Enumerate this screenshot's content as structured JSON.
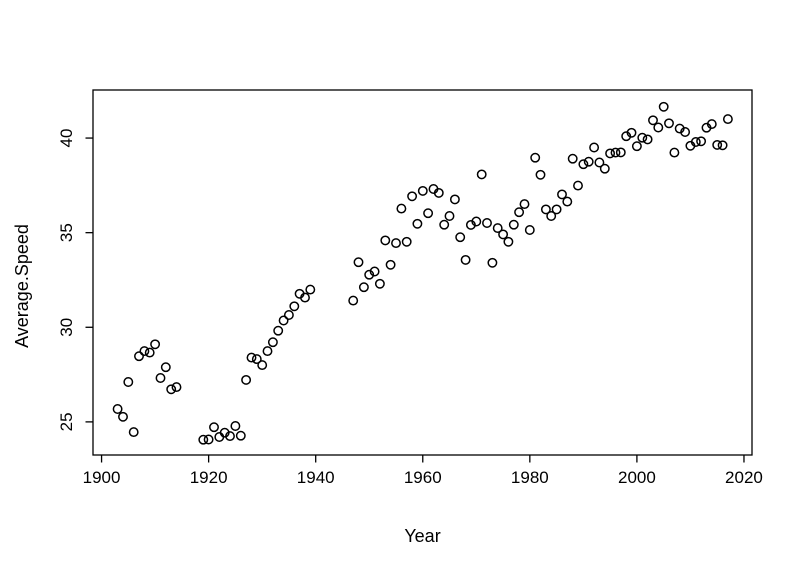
{
  "figure": {
    "background": "#ffffff",
    "foreground": "#000000"
  },
  "chart_data": {
    "type": "scatter",
    "title": "",
    "xlabel": "Year",
    "ylabel": "Average.Speed",
    "marker": "open-circle",
    "marker_color": "#000000",
    "grid": false,
    "legend": null,
    "xlim": [
      1898.4,
      2021.5
    ],
    "ylim": [
      23.25,
      42.54
    ],
    "x_ticks": [
      1900,
      1920,
      1940,
      1960,
      1980,
      2000,
      2020
    ],
    "y_ticks": [
      25,
      30,
      35,
      40
    ],
    "series": [
      {
        "name": "points",
        "x": [
          1903,
          1904,
          1905,
          1906,
          1907,
          1908,
          1909,
          1910,
          1911,
          1912,
          1913,
          1914,
          1919,
          1920,
          1921,
          1922,
          1923,
          1924,
          1925,
          1926,
          1927,
          1928,
          1929,
          1930,
          1931,
          1932,
          1933,
          1934,
          1935,
          1936,
          1937,
          1938,
          1939,
          1947,
          1948,
          1949,
          1950,
          1951,
          1952,
          1953,
          1954,
          1955,
          1956,
          1957,
          1958,
          1959,
          1960,
          1961,
          1962,
          1963,
          1964,
          1965,
          1966,
          1967,
          1968,
          1969,
          1970,
          1971,
          1972,
          1973,
          1974,
          1975,
          1976,
          1977,
          1978,
          1979,
          1980,
          1981,
          1982,
          1983,
          1984,
          1985,
          1986,
          1987,
          1988,
          1989,
          1990,
          1991,
          1992,
          1993,
          1994,
          1995,
          1996,
          1997,
          1998,
          1999,
          2000,
          2001,
          2002,
          2003,
          2004,
          2005,
          2006,
          2007,
          2008,
          2009,
          2010,
          2011,
          2012,
          2013,
          2014,
          2015,
          2016,
          2017
        ],
        "y": [
          25.68,
          25.27,
          27.11,
          24.46,
          28.47,
          28.74,
          28.66,
          29.1,
          27.32,
          27.89,
          26.72,
          26.84,
          24.06,
          24.07,
          24.72,
          24.2,
          24.43,
          24.25,
          24.78,
          24.27,
          27.22,
          28.4,
          28.32,
          28.0,
          28.74,
          29.21,
          29.82,
          30.36,
          30.65,
          31.11,
          31.77,
          31.57,
          31.99,
          31.41,
          33.44,
          32.12,
          32.78,
          32.95,
          32.3,
          34.59,
          33.3,
          34.45,
          36.27,
          34.52,
          36.92,
          35.47,
          37.21,
          36.03,
          37.31,
          37.1,
          35.42,
          35.88,
          36.76,
          34.76,
          33.56,
          35.41,
          35.59,
          38.08,
          35.51,
          33.41,
          35.24,
          34.91,
          34.52,
          35.42,
          36.08,
          36.51,
          35.14,
          38.96,
          38.06,
          36.23,
          35.88,
          36.23,
          37.02,
          36.64,
          38.91,
          37.49,
          38.62,
          38.75,
          39.5,
          38.71,
          38.38,
          39.19,
          39.23,
          39.24,
          40.1,
          40.28,
          39.57,
          40.02,
          39.93,
          40.94,
          40.56,
          41.65,
          40.78,
          39.23,
          40.5,
          40.32,
          39.59,
          39.79,
          39.83,
          40.55,
          40.74,
          39.64,
          39.62,
          41.0
        ]
      }
    ]
  }
}
